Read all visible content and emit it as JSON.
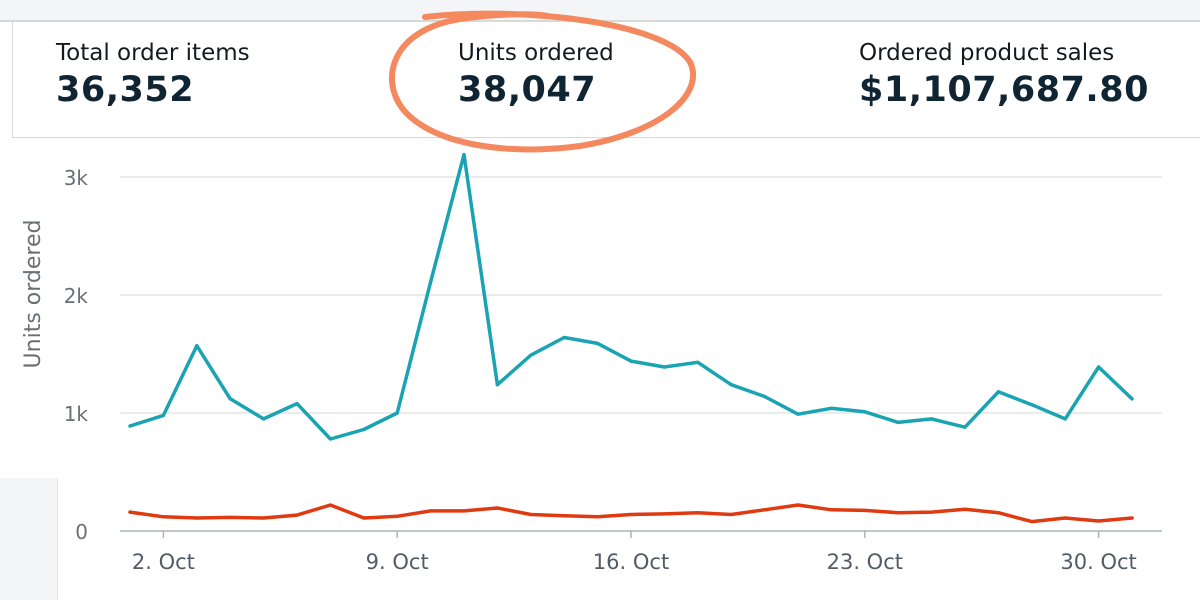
{
  "metrics": [
    {
      "label": "Total order items",
      "value": "36,352"
    },
    {
      "label": "Units ordered",
      "value": "38,047"
    },
    {
      "label": "Ordered product sales",
      "value": "$1,107,687.80"
    }
  ],
  "highlight_color": "#f4895f",
  "chart_data": {
    "type": "line",
    "ylabel": "Units ordered",
    "xlabel": "",
    "ylim": [
      0,
      3300
    ],
    "yticks": [
      0,
      1000,
      2000,
      3000
    ],
    "ytick_labels": [
      "0",
      "1k",
      "2k",
      "3k"
    ],
    "xlim": [
      1,
      31.7
    ],
    "xticks": [
      2,
      9,
      16,
      23,
      30
    ],
    "xtick_labels": [
      "2. Oct",
      "9. Oct",
      "16. Oct",
      "23. Oct",
      "30. Oct"
    ],
    "grid": true,
    "x": [
      1,
      2,
      3,
      4,
      5,
      6,
      7,
      8,
      9,
      10,
      11,
      12,
      13,
      14,
      15,
      16,
      17,
      18,
      19,
      20,
      21,
      22,
      23,
      24,
      25,
      26,
      27,
      28,
      29,
      30,
      31
    ],
    "series": [
      {
        "color": "#1aa3b2",
        "values": [
          890,
          980,
          1570,
          1120,
          950,
          1080,
          780,
          860,
          1000,
          2110,
          3190,
          1240,
          1490,
          1640,
          1590,
          1440,
          1390,
          1430,
          1240,
          1140,
          990,
          1040,
          1010,
          920,
          950,
          880,
          1180,
          1070,
          950,
          1390,
          1120
        ]
      },
      {
        "color": "#e03a12",
        "values": [
          160,
          120,
          110,
          115,
          110,
          135,
          220,
          110,
          125,
          170,
          170,
          195,
          140,
          130,
          120,
          140,
          145,
          155,
          140,
          180,
          220,
          180,
          175,
          155,
          160,
          185,
          155,
          80,
          110,
          85,
          110
        ]
      }
    ]
  }
}
